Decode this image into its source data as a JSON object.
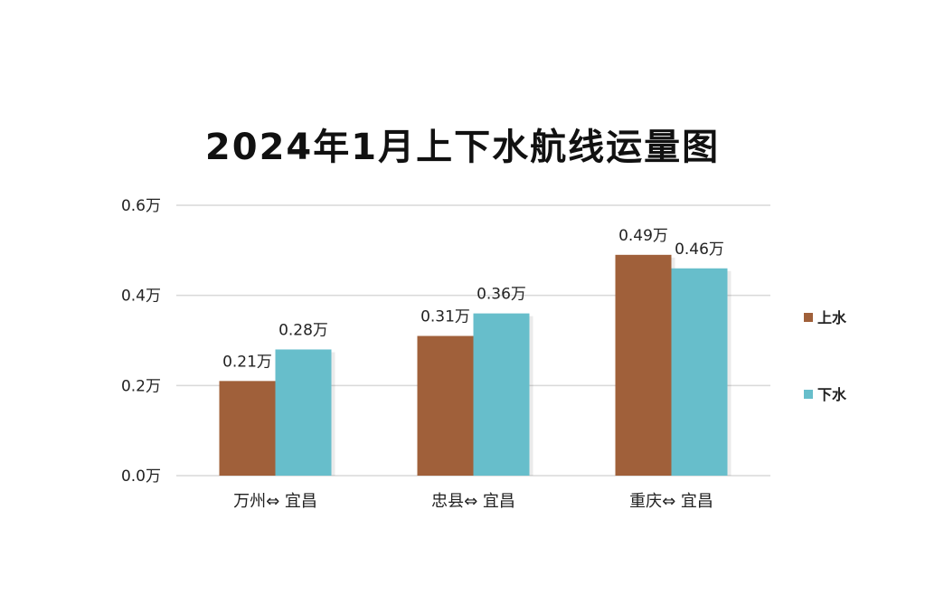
{
  "chart_data": {
    "type": "bar",
    "title": "2024年1月上下水航线运量图",
    "categories": [
      "万州⇔ 宜昌",
      "忠县⇔ 宜昌",
      "重庆⇔ 宜昌"
    ],
    "series": [
      {
        "name": "上水",
        "values": [
          0.21,
          0.31,
          0.49
        ],
        "labels": [
          "0.21万",
          "0.31万",
          "0.49万"
        ],
        "color": "#A0603A"
      },
      {
        "name": "下水",
        "values": [
          0.28,
          0.36,
          0.46
        ],
        "labels": [
          "0.28万",
          "0.36万",
          "0.46万"
        ],
        "color": "#67BECB"
      }
    ],
    "ylim": [
      0,
      0.6
    ],
    "yticks": [
      0,
      0.2,
      0.4,
      0.6
    ],
    "ytick_labels": [
      "0.0万",
      "0.2万",
      "0.4万",
      "0.6万"
    ],
    "grid": true,
    "legend_position": "right"
  }
}
